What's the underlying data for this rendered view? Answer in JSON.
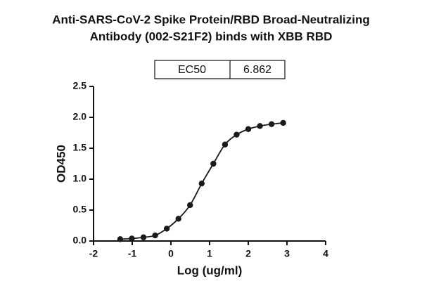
{
  "chart_data": {
    "type": "scatter",
    "title": "Anti-SARS-CoV-2 Spike Protein/RBD Broad-Neutralizing",
    "subtitle": "Antibody (002-S21F2) binds with XBB RBD",
    "x_label": "Log (ug/ml)",
    "y_label": "OD450",
    "annotation": {
      "label": "EC50",
      "value": "6.862"
    },
    "fit_line": true,
    "color": "#1a1a1a",
    "x": [
      -1.311,
      -1.01,
      -0.709,
      -0.408,
      -0.107,
      0.194,
      0.495,
      0.796,
      1.097,
      1.398,
      1.699,
      2.0,
      2.301,
      2.602,
      2.903
    ],
    "values": [
      0.03,
      0.04,
      0.06,
      0.09,
      0.2,
      0.36,
      0.58,
      0.93,
      1.25,
      1.56,
      1.72,
      1.81,
      1.86,
      1.89,
      1.91
    ],
    "xlim": [
      -2,
      4
    ],
    "xticks": [
      -2,
      -1,
      0,
      1,
      2,
      3,
      4
    ],
    "ylim": [
      0,
      2.5
    ],
    "yticks": [
      {
        "value": 0,
        "label": "0.0"
      },
      0.5,
      {
        "value": 1,
        "label": "1.0"
      },
      1.5,
      {
        "value": 2,
        "label": "2.0"
      },
      2.5
    ]
  }
}
